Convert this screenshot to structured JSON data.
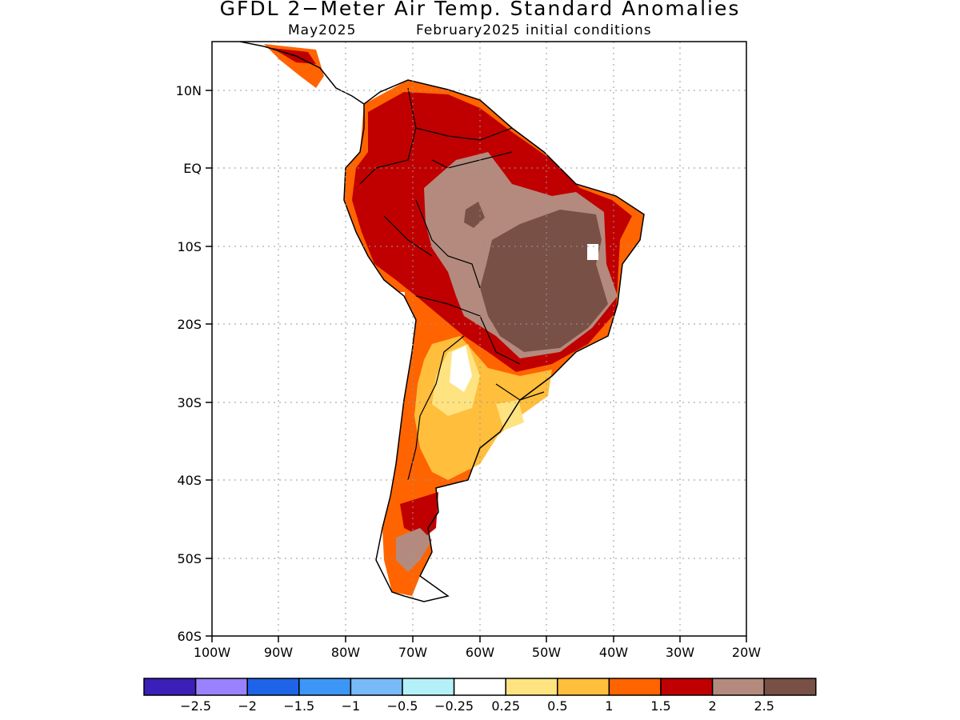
{
  "title": "GFDL 2−Meter Air Temp. Standard Anomalies",
  "subtitle_left": "May2025",
  "subtitle_right": "February2025 initial conditions",
  "map": {
    "lon_labels": [
      "100W",
      "90W",
      "80W",
      "70W",
      "60W",
      "50W",
      "40W",
      "30W",
      "20W"
    ],
    "lat_labels": [
      "10N",
      "EQ",
      "10S",
      "20S",
      "30S",
      "40S",
      "50S",
      "60S"
    ],
    "lon_range": [
      -100,
      -20
    ],
    "lat_range": [
      -60,
      16
    ],
    "grid": "dotted"
  },
  "legend": {
    "colors": [
      "#3a1fb8",
      "#9a82ff",
      "#1e64e8",
      "#3c96f5",
      "#78b9f8",
      "#b4f0f8",
      "#ffffff",
      "#ffe380",
      "#ffbe3c",
      "#ff6400",
      "#c00000",
      "#b48a7e",
      "#785046"
    ],
    "labels": [
      "−2.5",
      "−2",
      "−1.5",
      "−1",
      "−0.5",
      "−0.25",
      "0.25",
      "0.5",
      "1",
      "1.5",
      "2",
      "2.5"
    ]
  },
  "colors": {
    "anom_05": "#ffe380",
    "anom_1": "#ffbe3c",
    "anom_15": "#ff6400",
    "anom_2": "#c00000",
    "anom_25": "#b48a7e",
    "anom_3": "#785046"
  }
}
